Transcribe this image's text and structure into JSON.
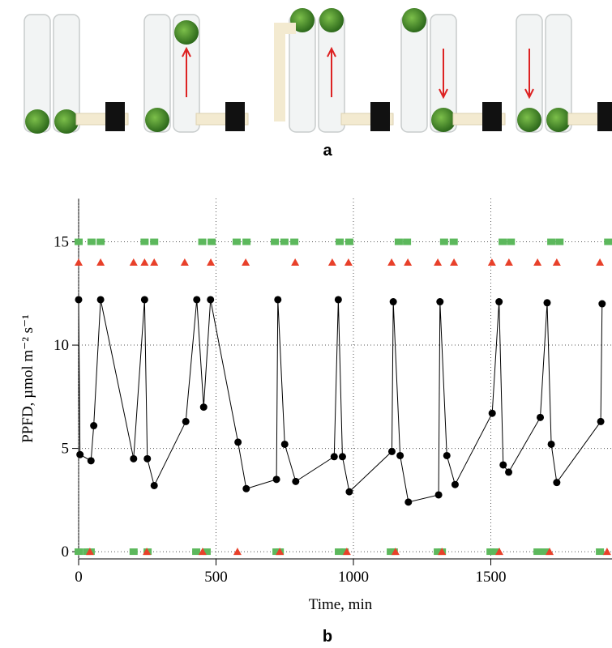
{
  "panels": {
    "a": "a",
    "b": "b"
  },
  "chart_data": {
    "type": "line",
    "xlabel": "Time, min",
    "ylabel": "PPFD, µmol m⁻² s⁻¹",
    "xlim": [
      0,
      1941
    ],
    "ylim": [
      -0.35,
      17.1
    ],
    "xticks": [
      0,
      500,
      1000,
      1500
    ],
    "yticks": [
      0,
      5,
      10,
      15
    ],
    "grid": true,
    "series": [
      {
        "type": "line",
        "marker": "circle",
        "color": "#000000",
        "x": [
          0,
          5,
          45,
          55,
          80,
          200,
          240,
          250,
          275,
          390,
          430,
          455,
          480,
          580,
          610,
          720,
          725,
          750,
          790,
          930,
          945,
          960,
          985,
          1140,
          1145,
          1170,
          1200,
          1310,
          1315,
          1340,
          1370,
          1505,
          1530,
          1545,
          1565,
          1680,
          1705,
          1720,
          1740,
          1900,
          1905
        ],
        "values": [
          12.2,
          4.7,
          4.4,
          6.1,
          12.2,
          4.5,
          12.2,
          4.5,
          3.2,
          6.3,
          12.2,
          7.0,
          12.2,
          5.3,
          3.05,
          3.5,
          12.2,
          5.2,
          3.4,
          4.6,
          12.2,
          4.6,
          2.9,
          4.85,
          12.1,
          4.65,
          2.4,
          2.75,
          12.1,
          4.65,
          3.25,
          6.7,
          12.1,
          4.2,
          3.85,
          6.5,
          12.05,
          5.2,
          3.35,
          6.3,
          12.0
        ]
      },
      {
        "type": "scatter",
        "marker": "square",
        "color": "#5cb85c",
        "x": [
          0,
          47,
          80,
          240,
          275,
          450,
          484,
          575,
          611,
          714,
          749,
          785,
          950,
          985,
          1165,
          1195,
          1330,
          1365,
          1543,
          1573,
          1720,
          1750,
          1927
        ],
        "values": [
          15,
          15,
          15,
          15,
          15,
          15,
          15,
          15,
          15,
          15,
          15,
          15,
          15,
          15,
          15,
          15,
          15,
          15,
          15,
          15,
          15,
          15,
          15
        ]
      },
      {
        "type": "scatter",
        "marker": "triangle",
        "color": "#e8402a",
        "x": [
          0,
          80,
          200,
          240,
          275,
          386,
          481,
          608,
          788,
          923,
          982,
          1139,
          1198,
          1307,
          1366,
          1504,
          1566,
          1670,
          1740,
          1897
        ],
        "values": [
          14,
          14,
          14,
          14,
          14,
          14,
          14,
          14,
          14,
          14,
          14,
          14,
          14,
          14,
          14,
          14,
          14,
          14,
          14,
          14
        ]
      },
      {
        "type": "scatter",
        "marker": "square",
        "color": "#5cb85c",
        "x": [
          0,
          30,
          44,
          200,
          251,
          428,
          466,
          720,
          732,
          947,
          968,
          1136,
          1147,
          1307,
          1322,
          1499,
          1519,
          1670,
          1699,
          1897
        ],
        "values": [
          0,
          0,
          0,
          0,
          0,
          0,
          0,
          0,
          0,
          0,
          0,
          0,
          0,
          0,
          0,
          0,
          0,
          0,
          0,
          0
        ]
      },
      {
        "type": "scatter",
        "marker": "triangle",
        "color": "#e8402a",
        "x": [
          41,
          248,
          451,
          578,
          732,
          976,
          1153,
          1322,
          1531,
          1714,
          1923
        ],
        "values": [
          0,
          0,
          0,
          0,
          0,
          0,
          0,
          0,
          0,
          0,
          0
        ]
      }
    ]
  }
}
